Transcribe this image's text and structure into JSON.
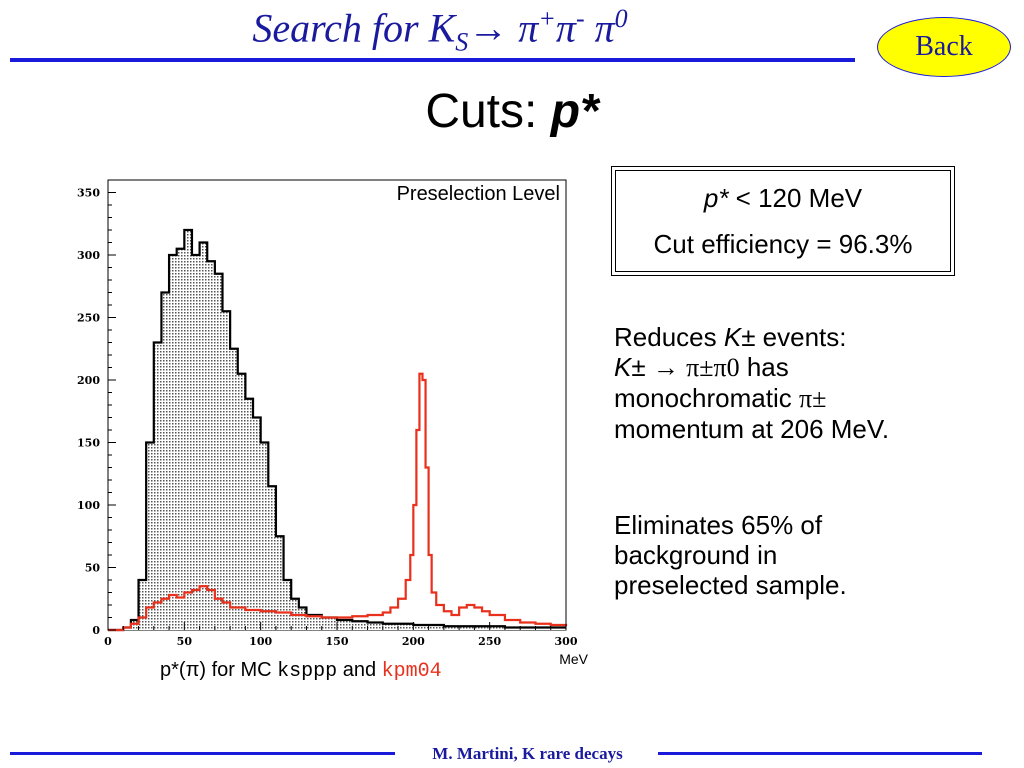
{
  "slide": {
    "title_main": "Search for K",
    "title_sub": "S",
    "title_arrow": "→",
    "title_decay": "π",
    "title_sup1": "+",
    "title_sup2": "-",
    "title_sup3": "0",
    "back_label": "Back",
    "subtitle_prefix": "Cuts: ",
    "subtitle_var": "p*",
    "footer": "M. Martini, K rare decays"
  },
  "cut_box": {
    "line1_var": "p*",
    "line1_rest": " < 120 MeV",
    "line2": "Cut efficiency = 96.3%"
  },
  "paragraph1": {
    "line1a": "Reduces ",
    "line1b": "K",
    "line1c": "± events:",
    "line2a": "K",
    "line2b": "± → ",
    "line2c": "π±π0",
    "line2d": " has",
    "line3a": "monochromatic ",
    "line3b": "π±",
    "line4": "momentum at 206 MeV."
  },
  "paragraph2": {
    "line1": "Eliminates 65% of",
    "line2": "background in",
    "line3": "preselected sample."
  },
  "caption": {
    "part1": "p*(π) for MC ",
    "ksppp": "ksppp",
    "and": " and ",
    "kpm04": "kpm04"
  },
  "chart_data": {
    "type": "line",
    "title": "Preselection Level",
    "xlabel": "MeV",
    "ylabel": "",
    "xlim": [
      0,
      300
    ],
    "ylim": [
      0,
      360
    ],
    "xticks": [
      0,
      50,
      100,
      150,
      200,
      250,
      300
    ],
    "yticks": [
      0,
      50,
      100,
      150,
      200,
      250,
      300,
      350
    ],
    "grid": false,
    "colors": {
      "ksppp": "#000000",
      "kpm04": "#e8301c",
      "fill": "#c8c8c8"
    },
    "series": [
      {
        "name": "ksppp",
        "x": [
          0,
          10,
          15,
          20,
          25,
          30,
          35,
          40,
          45,
          50,
          55,
          60,
          65,
          70,
          75,
          80,
          85,
          90,
          95,
          100,
          105,
          110,
          115,
          120,
          125,
          130,
          140,
          150,
          160,
          170,
          180,
          190,
          200,
          210,
          220,
          230,
          240,
          250,
          260,
          270,
          280,
          290,
          300
        ],
        "y": [
          0,
          2,
          8,
          40,
          150,
          230,
          270,
          300,
          305,
          320,
          300,
          310,
          295,
          285,
          255,
          225,
          205,
          185,
          170,
          150,
          115,
          75,
          40,
          25,
          18,
          12,
          10,
          8,
          7,
          6,
          5,
          5,
          4,
          4,
          3,
          3,
          3,
          3,
          2,
          2,
          2,
          2,
          2
        ]
      },
      {
        "name": "kpm04",
        "x": [
          0,
          10,
          15,
          20,
          25,
          30,
          35,
          40,
          45,
          50,
          55,
          60,
          65,
          70,
          75,
          80,
          90,
          100,
          110,
          120,
          130,
          140,
          150,
          160,
          170,
          180,
          185,
          190,
          195,
          198,
          200,
          202,
          204,
          206,
          208,
          210,
          212,
          215,
          220,
          225,
          230,
          235,
          240,
          245,
          250,
          260,
          270,
          280,
          290,
          300
        ],
        "y": [
          0,
          2,
          5,
          10,
          18,
          22,
          25,
          28,
          26,
          30,
          32,
          35,
          32,
          25,
          22,
          18,
          16,
          15,
          14,
          12,
          11,
          10,
          10,
          11,
          12,
          14,
          18,
          25,
          40,
          60,
          100,
          160,
          205,
          200,
          130,
          60,
          30,
          20,
          15,
          12,
          18,
          20,
          18,
          15,
          12,
          8,
          6,
          5,
          4,
          3
        ]
      }
    ]
  }
}
